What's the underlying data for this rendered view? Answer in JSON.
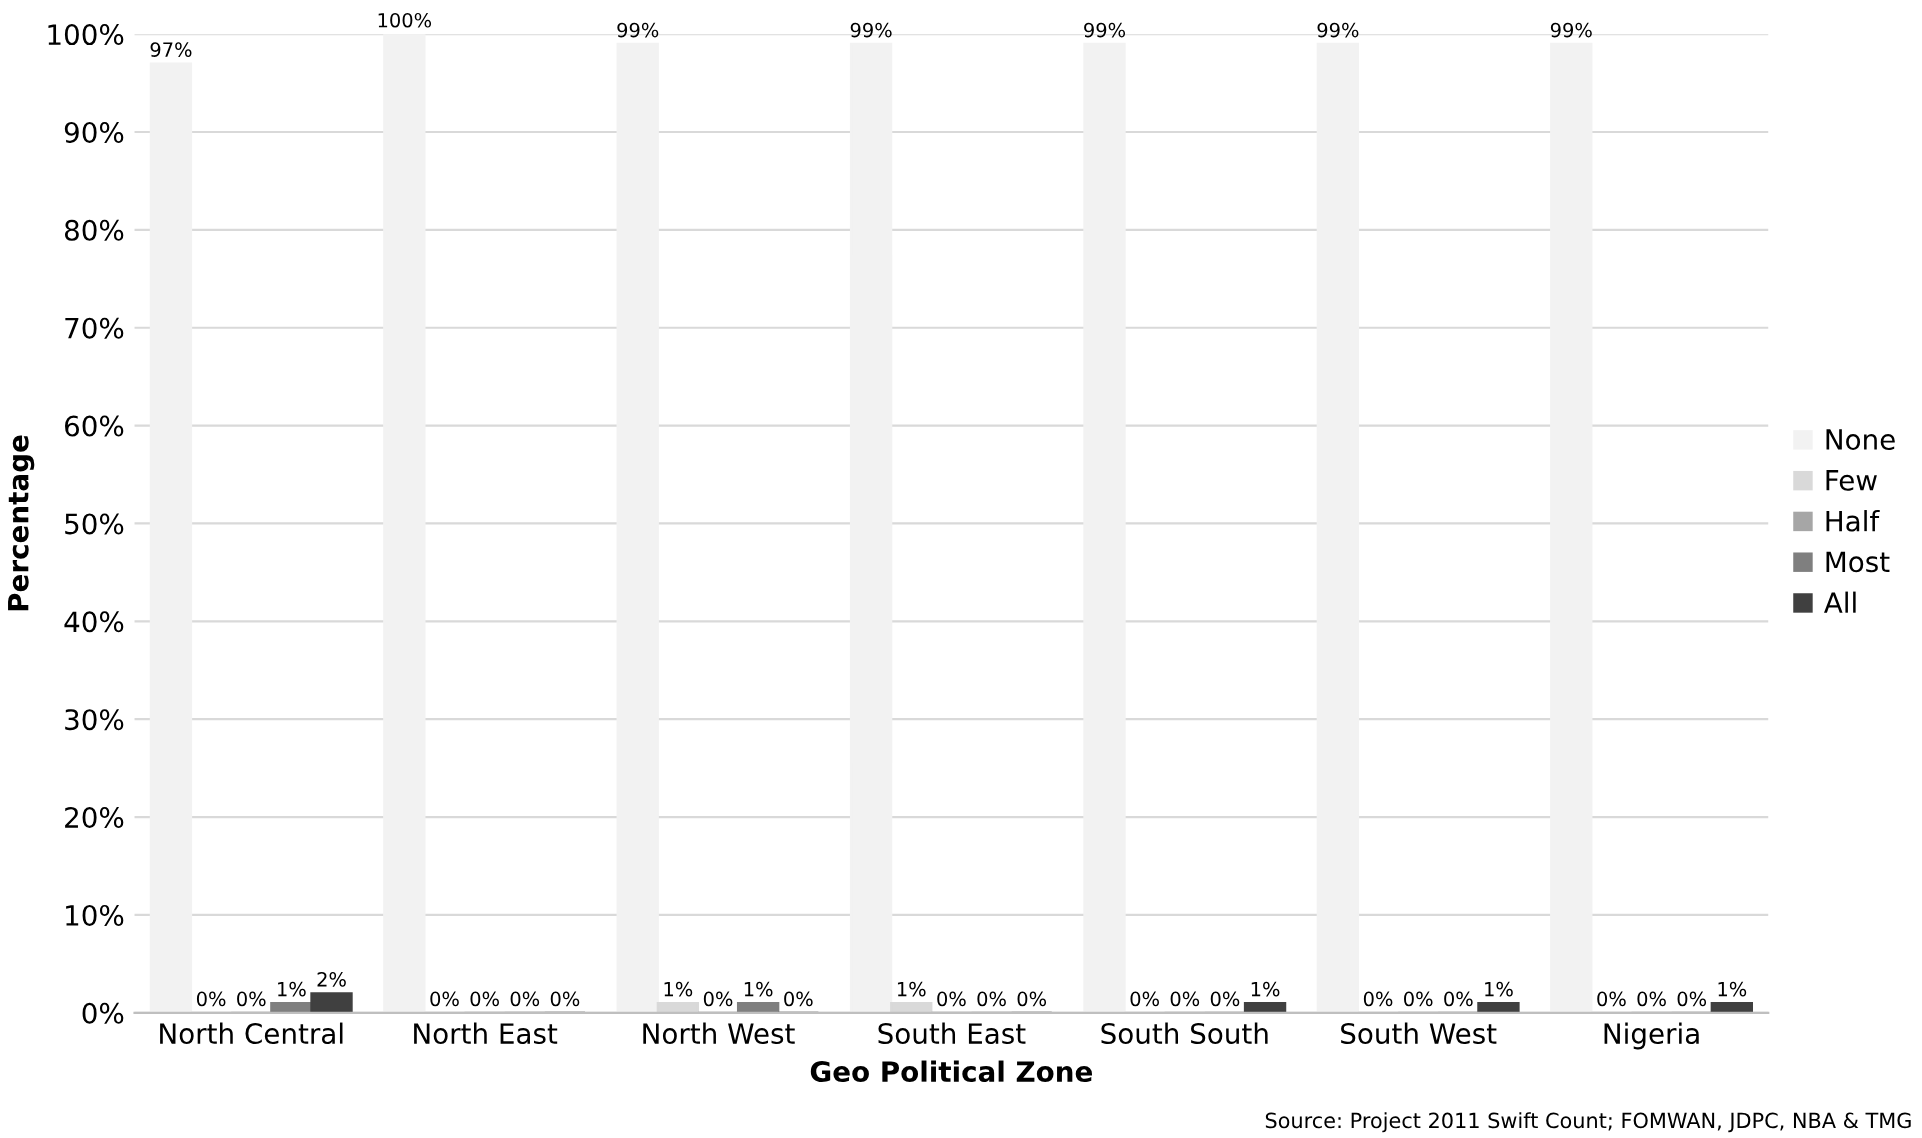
{
  "chart_data": {
    "type": "bar",
    "xlabel": "Geo Political Zone",
    "ylabel": "Percentage",
    "categories": [
      "North Central",
      "North East",
      "North West",
      "South East",
      "South South",
      "South West",
      "Nigeria"
    ],
    "series": [
      {
        "name": "None",
        "color": "#f2f2f2",
        "values": [
          97,
          100,
          99,
          99,
          99,
          99,
          99
        ],
        "value_labels": [
          "97%",
          "100%",
          "99%",
          "99%",
          "99%",
          "99%",
          "99%"
        ]
      },
      {
        "name": "Few",
        "color": "#d9d9d9",
        "values": [
          0,
          0,
          1,
          1,
          0,
          0,
          0
        ],
        "value_labels": [
          "0%",
          "0%",
          "1%",
          "1%",
          "0%",
          "0%",
          "0%"
        ]
      },
      {
        "name": "Half",
        "color": "#a6a6a6",
        "values": [
          0,
          0,
          0,
          0,
          0,
          0,
          0
        ],
        "value_labels": [
          "0%",
          "0%",
          "0%",
          "0%",
          "0%",
          "0%",
          "0%"
        ]
      },
      {
        "name": "Most",
        "color": "#7f7f7f",
        "values": [
          1,
          0,
          1,
          0,
          0,
          0,
          0
        ],
        "value_labels": [
          "1%",
          "0%",
          "1%",
          "0%",
          "0%",
          "0%",
          "0%"
        ]
      },
      {
        "name": "All",
        "color": "#404040",
        "values": [
          2,
          0,
          0,
          0,
          1,
          1,
          1
        ],
        "value_labels": [
          "2%",
          "0%",
          "0%",
          "0%",
          "1%",
          "1%",
          "1%"
        ]
      }
    ],
    "ylim": [
      0,
      100
    ],
    "yticks": [
      {
        "value": 0,
        "label": "0%"
      },
      {
        "value": 10,
        "label": "10%"
      },
      {
        "value": 20,
        "label": "20%"
      },
      {
        "value": 30,
        "label": "30%"
      },
      {
        "value": 40,
        "label": "40%"
      },
      {
        "value": 50,
        "label": "50%"
      },
      {
        "value": 60,
        "label": "60%"
      },
      {
        "value": 70,
        "label": "70%"
      },
      {
        "value": 80,
        "label": "80%"
      },
      {
        "value": 90,
        "label": "90%"
      },
      {
        "value": 100,
        "label": "100%"
      }
    ],
    "grid": "y",
    "legend": "right",
    "annotations": [
      "Source: Project 2011 Swift Count; FOMWAN, JDPC, NBA & TMG"
    ]
  }
}
